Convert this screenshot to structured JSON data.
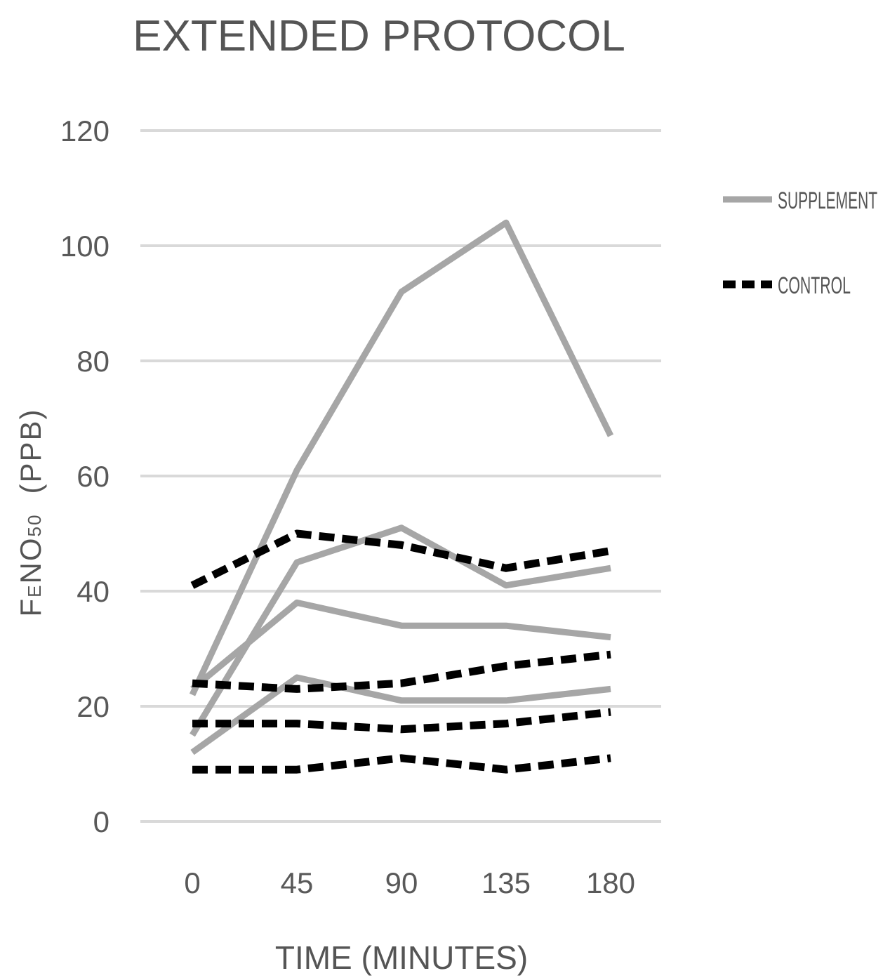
{
  "chart_data": {
    "type": "line",
    "title": "EXTENDED PROTOCOL",
    "xlabel": "TIME (MINUTES)",
    "ylabel": {
      "main": "F",
      "sub": "E",
      "mid": "NO",
      "sub2": "50",
      "unit": "(PPB)"
    },
    "categories": [
      "0",
      "45",
      "90",
      "135",
      "180"
    ],
    "ylim": [
      0,
      120
    ],
    "yticks": [
      "0",
      "20",
      "40",
      "60",
      "80",
      "100",
      "120"
    ],
    "grid": true,
    "legend_position": "right",
    "legend": [
      {
        "label": "SUPPLEMENT",
        "style": "solid",
        "color": "#a6a6a6"
      },
      {
        "label": "CONTROL",
        "style": "dashed",
        "color": "#000000"
      }
    ],
    "series": [
      {
        "group": "SUPPLEMENT",
        "values": [
          22,
          61,
          92,
          104,
          67
        ]
      },
      {
        "group": "SUPPLEMENT",
        "values": [
          15,
          45,
          51,
          41,
          44
        ]
      },
      {
        "group": "SUPPLEMENT",
        "values": [
          23,
          38,
          34,
          34,
          32
        ]
      },
      {
        "group": "SUPPLEMENT",
        "values": [
          12,
          25,
          21,
          21,
          23
        ]
      },
      {
        "group": "CONTROL",
        "values": [
          41,
          50,
          48,
          44,
          47
        ]
      },
      {
        "group": "CONTROL",
        "values": [
          24,
          23,
          24,
          27,
          29
        ]
      },
      {
        "group": "CONTROL",
        "values": [
          17,
          17,
          16,
          17,
          19
        ]
      },
      {
        "group": "CONTROL",
        "values": [
          9,
          9,
          11,
          9,
          11
        ]
      }
    ]
  }
}
